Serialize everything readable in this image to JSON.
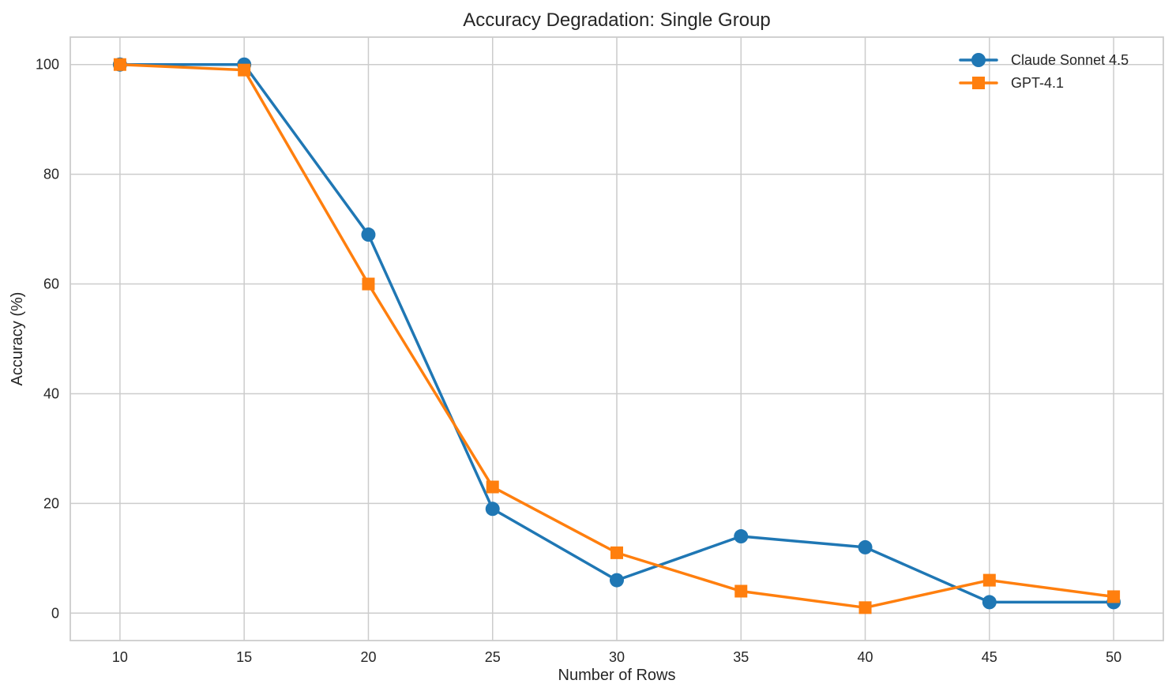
{
  "chart_data": {
    "type": "line",
    "title": "Accuracy Degradation: Single Group",
    "xlabel": "Number of Rows",
    "ylabel": "Accuracy (%)",
    "x": [
      10,
      15,
      20,
      25,
      30,
      35,
      40,
      45,
      50
    ],
    "series": [
      {
        "name": "Claude Sonnet 4.5",
        "color": "#1f77b4",
        "marker": "circle",
        "values": [
          100,
          100,
          69,
          19,
          6,
          14,
          12,
          2,
          2
        ]
      },
      {
        "name": "GPT-4.1",
        "color": "#ff7f0e",
        "marker": "square",
        "values": [
          100,
          99,
          60,
          23,
          11,
          4,
          1,
          6,
          3
        ]
      }
    ],
    "xticks": [
      10,
      15,
      20,
      25,
      30,
      35,
      40,
      45,
      50
    ],
    "yticks": [
      0,
      20,
      40,
      60,
      80,
      100
    ],
    "xlim": [
      8,
      52
    ],
    "ylim": [
      -5,
      105
    ],
    "grid": true,
    "legend_position": "upper-right",
    "legend_frame": false,
    "colors": {
      "grid": "#cccccc",
      "axes_border": "#cccccc",
      "text": "#262626",
      "background": "#ffffff"
    }
  }
}
